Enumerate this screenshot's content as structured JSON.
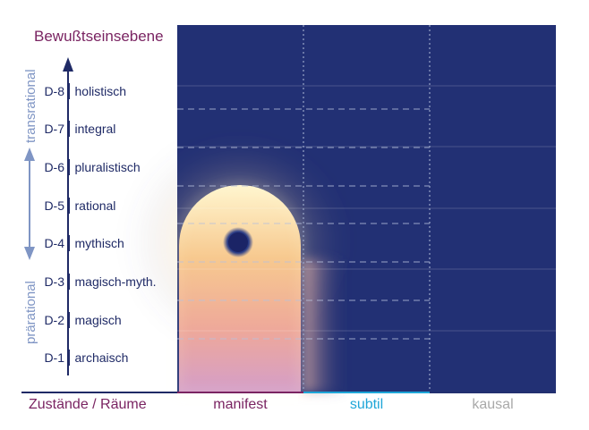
{
  "title": "Bewußtseinsebene",
  "levels": [
    {
      "code": "D-8",
      "name": "holistisch"
    },
    {
      "code": "D-7",
      "name": "integral"
    },
    {
      "code": "D-6",
      "name": "pluralistisch"
    },
    {
      "code": "D-5",
      "name": "rational"
    },
    {
      "code": "D-4",
      "name": "mythisch"
    },
    {
      "code": "D-3",
      "name": "magisch-myth."
    },
    {
      "code": "D-2",
      "name": "magisch"
    },
    {
      "code": "D-1",
      "name": "archaisch"
    }
  ],
  "vertical_labels": {
    "top": "transrational",
    "bottom": "prärational"
  },
  "x_axis_label": "Zustände / Räume",
  "columns": [
    {
      "label": "manifest",
      "color": "#7a2462"
    },
    {
      "label": "subtil",
      "color": "#1fa6d8"
    },
    {
      "label": "kausal",
      "color": "#a9a9a9"
    }
  ],
  "colors": {
    "background": "#223070",
    "title": "#7a2462",
    "level_text": "#1f2a66",
    "range_arrow": "#7f95c4",
    "glow_top": "#fff3c4",
    "glow_bottom": "#d9a0c8",
    "dot": "#1e2a6e"
  }
}
